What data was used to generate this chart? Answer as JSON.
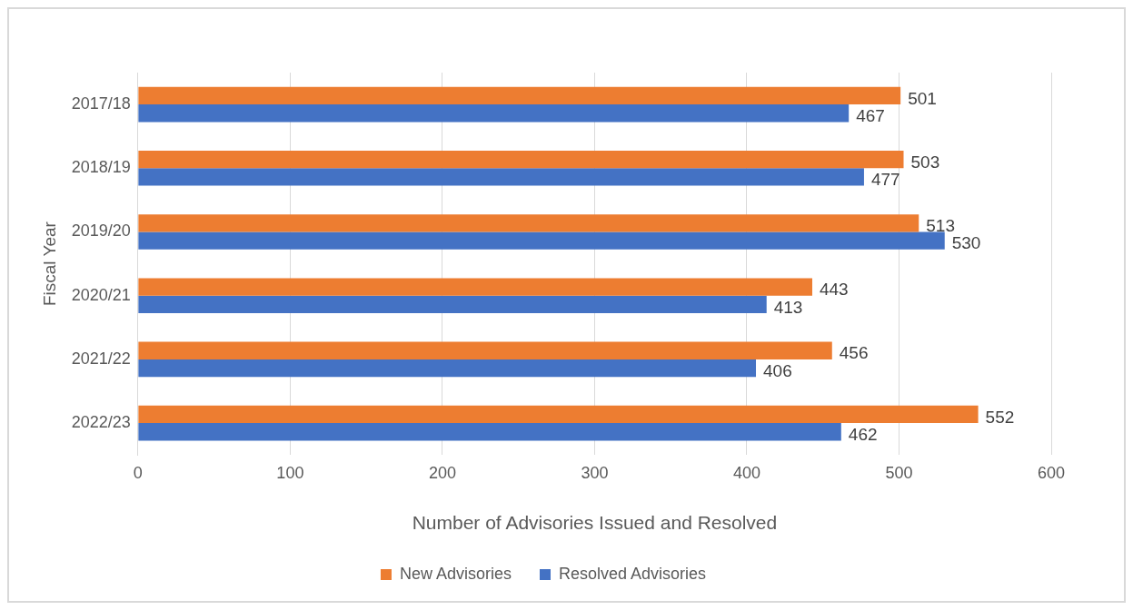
{
  "chart_data": {
    "type": "bar",
    "orientation": "horizontal",
    "xlabel": "Number of Advisories Issued and Resolved",
    "ylabel": "Fiscal Year",
    "categories": [
      "2017/18",
      "2018/19",
      "2019/20",
      "2020/21",
      "2021/22",
      "2022/23"
    ],
    "series": [
      {
        "name": "New Advisories",
        "color": "#ed7d31",
        "values": [
          501,
          503,
          513,
          443,
          456,
          552
        ]
      },
      {
        "name": "Resolved Advisories",
        "color": "#4472c4",
        "values": [
          467,
          477,
          530,
          413,
          406,
          462
        ]
      }
    ],
    "xlim": [
      0,
      600
    ],
    "xticks": [
      0,
      100,
      200,
      300,
      400,
      500,
      600
    ],
    "grid": "x",
    "legend": "bottom",
    "data_labels": true
  }
}
